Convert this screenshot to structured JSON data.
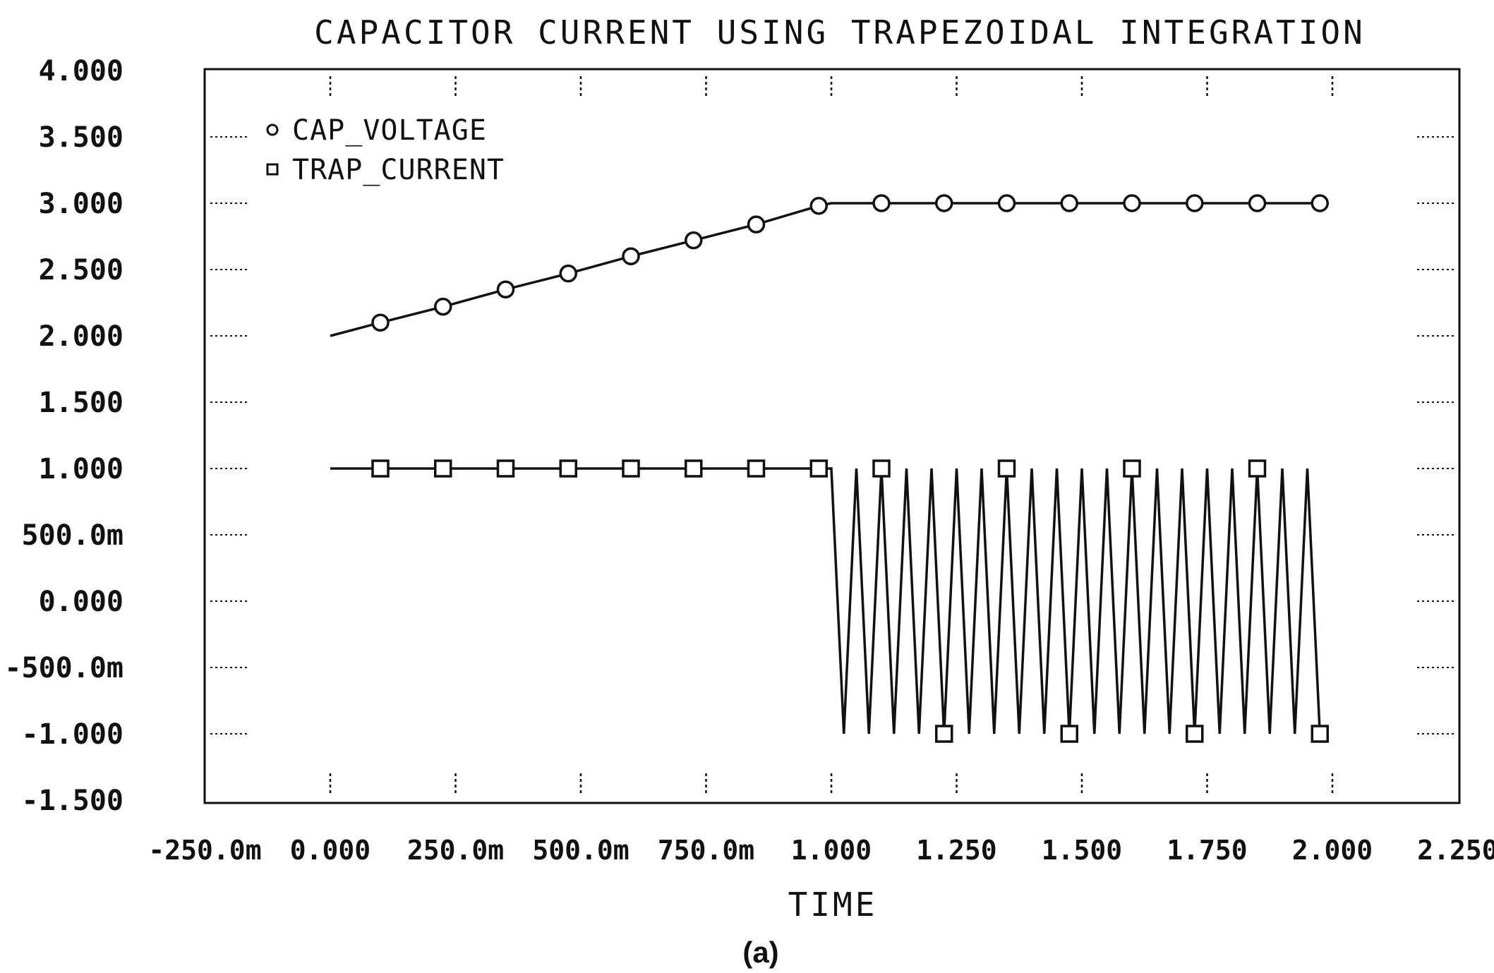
{
  "chart_data": {
    "type": "line",
    "title": "CAPACITOR CURRENT USING TRAPEZOIDAL INTEGRATION",
    "xlabel": "TIME",
    "ylabel": "",
    "caption": "(a)",
    "xlim": [
      -0.25,
      2.25
    ],
    "ylim": [
      -1.5,
      4.0
    ],
    "x_ticks": [
      -0.25,
      0.0,
      0.25,
      0.5,
      0.75,
      1.0,
      1.25,
      1.5,
      1.75,
      2.0,
      2.25
    ],
    "x_tick_labels": [
      "-250.0m",
      "0.000",
      "250.0m",
      "500.0m",
      "750.0m",
      "1.000",
      "1.250",
      "1.500",
      "1.750",
      "2.000",
      "2.250"
    ],
    "y_ticks": [
      4.0,
      3.5,
      3.0,
      2.5,
      2.0,
      1.5,
      1.0,
      0.5,
      0.0,
      -0.5,
      -1.0,
      -1.5
    ],
    "y_tick_labels": [
      "4.000",
      "3.500",
      "3.000",
      "2.500",
      "2.000",
      "1.500",
      "1.000",
      "500.0m",
      "0.000",
      "-500.0m",
      "-1.000",
      "-1.500"
    ],
    "legend_position": "top-left",
    "series": [
      {
        "name": "CAP_VOLTAGE",
        "marker": "circle",
        "x": [
          0.0,
          0.1,
          0.225,
          0.35,
          0.475,
          0.6,
          0.725,
          0.85,
          0.975,
          1.0,
          1.1,
          1.225,
          1.35,
          1.475,
          1.6,
          1.725,
          1.85,
          1.975
        ],
        "y": [
          2.0,
          2.1,
          2.22,
          2.35,
          2.47,
          2.6,
          2.72,
          2.84,
          2.98,
          3.0,
          3.0,
          3.0,
          3.0,
          3.0,
          3.0,
          3.0,
          3.0,
          3.0
        ],
        "marker_x": [
          0.1,
          0.225,
          0.35,
          0.475,
          0.6,
          0.725,
          0.85,
          0.975,
          1.1,
          1.225,
          1.35,
          1.475,
          1.6,
          1.725,
          1.85,
          1.975
        ]
      },
      {
        "name": "TRAP_CURRENT",
        "marker": "square",
        "x": [
          0.0,
          0.975,
          1.0,
          1.025,
          1.05,
          1.075,
          1.1,
          1.125,
          1.15,
          1.175,
          1.2,
          1.225,
          1.25,
          1.275,
          1.3,
          1.325,
          1.35,
          1.375,
          1.4,
          1.425,
          1.45,
          1.475,
          1.5,
          1.525,
          1.55,
          1.575,
          1.6,
          1.625,
          1.65,
          1.675,
          1.7,
          1.725,
          1.75,
          1.775,
          1.8,
          1.825,
          1.85,
          1.875,
          1.9,
          1.925,
          1.95,
          1.975
        ],
        "y": [
          1.0,
          1.0,
          1.0,
          -1.0,
          1.0,
          -1.0,
          1.0,
          -1.0,
          1.0,
          -1.0,
          1.0,
          -1.0,
          1.0,
          -1.0,
          1.0,
          -1.0,
          1.0,
          -1.0,
          1.0,
          -1.0,
          1.0,
          -1.0,
          1.0,
          -1.0,
          1.0,
          -1.0,
          1.0,
          -1.0,
          1.0,
          -1.0,
          1.0,
          -1.0,
          1.0,
          -1.0,
          1.0,
          -1.0,
          1.0,
          -1.0,
          1.0,
          -1.0,
          1.0,
          -1.0
        ],
        "markers": [
          {
            "x": 0.1,
            "y": 1.0
          },
          {
            "x": 0.225,
            "y": 1.0
          },
          {
            "x": 0.35,
            "y": 1.0
          },
          {
            "x": 0.475,
            "y": 1.0
          },
          {
            "x": 0.6,
            "y": 1.0
          },
          {
            "x": 0.725,
            "y": 1.0
          },
          {
            "x": 0.85,
            "y": 1.0
          },
          {
            "x": 0.975,
            "y": 1.0
          },
          {
            "x": 1.1,
            "y": 1.0
          },
          {
            "x": 1.225,
            "y": -1.0
          },
          {
            "x": 1.35,
            "y": 1.0
          },
          {
            "x": 1.475,
            "y": -1.0
          },
          {
            "x": 1.6,
            "y": 1.0
          },
          {
            "x": 1.725,
            "y": -1.0
          },
          {
            "x": 1.85,
            "y": 1.0
          },
          {
            "x": 1.975,
            "y": -1.0
          }
        ]
      }
    ]
  }
}
